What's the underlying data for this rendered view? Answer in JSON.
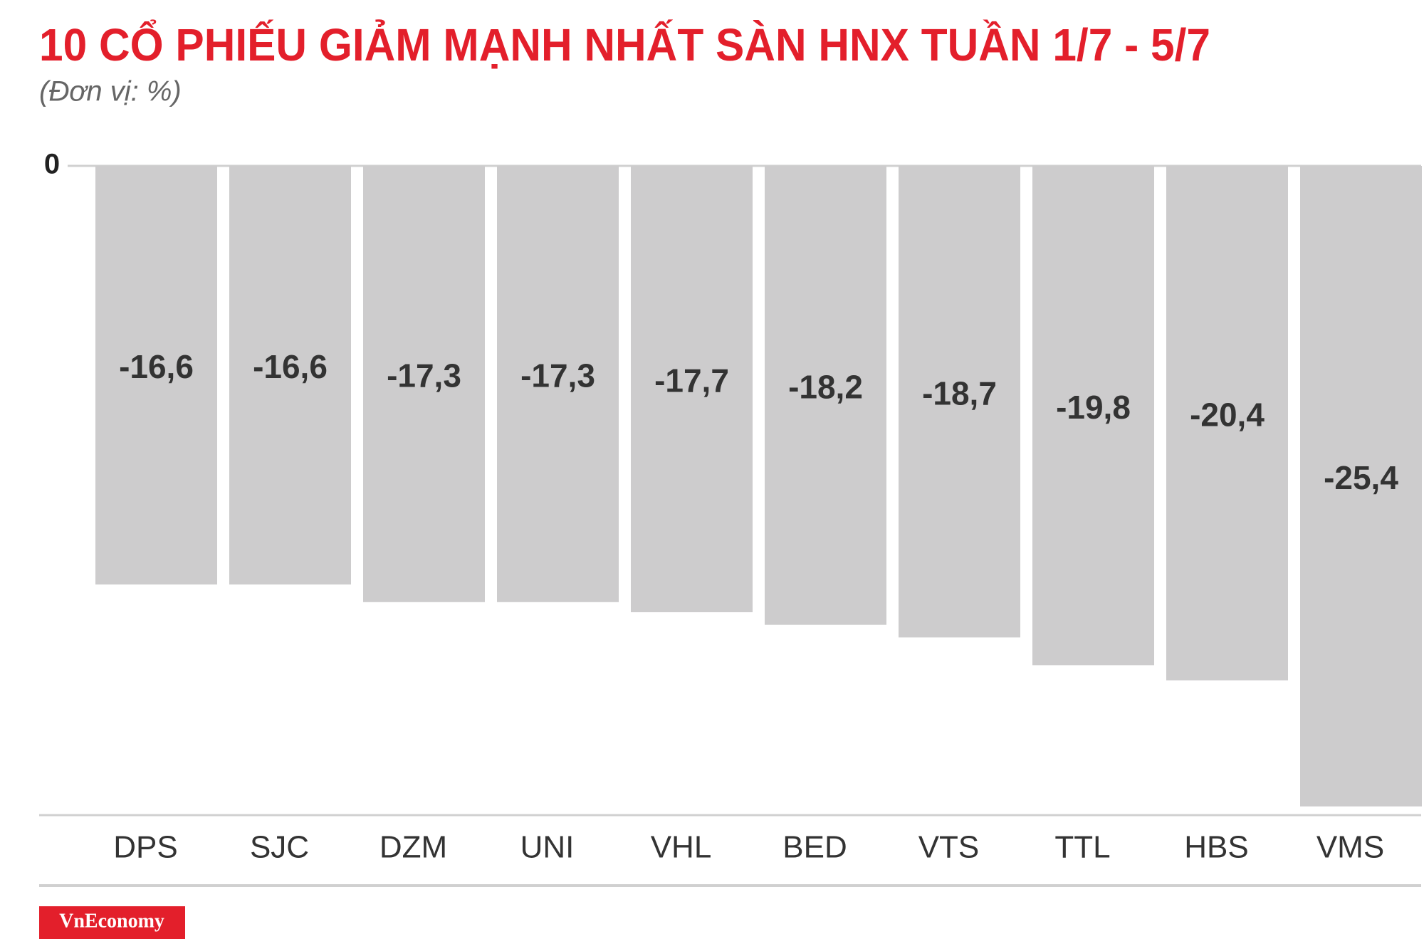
{
  "chart_data": {
    "type": "bar",
    "title": "10 CỔ PHIẾU GIẢM MẠNH NHẤT SÀN HNX TUẦN 1/7 - 5/7",
    "subtitle": "(Đơn vị: %)",
    "categories": [
      "DPS",
      "SJC",
      "DZM",
      "UNI",
      "VHL",
      "BED",
      "VTS",
      "TTL",
      "HBS",
      "VMS"
    ],
    "values": [
      -16.6,
      -16.6,
      -17.3,
      -17.3,
      -17.7,
      -18.2,
      -18.7,
      -19.8,
      -20.4,
      -25.4
    ],
    "value_labels": [
      "-16,6",
      "-16,6",
      "-17,3",
      "-17,3",
      "-17,7",
      "-18,2",
      "-18,7",
      "-19,8",
      "-20,4",
      "-25,4"
    ],
    "color": "#cdcccd",
    "ylim": [
      -26,
      0
    ],
    "yticks": [
      0
    ]
  },
  "logo": "VnEconomy"
}
